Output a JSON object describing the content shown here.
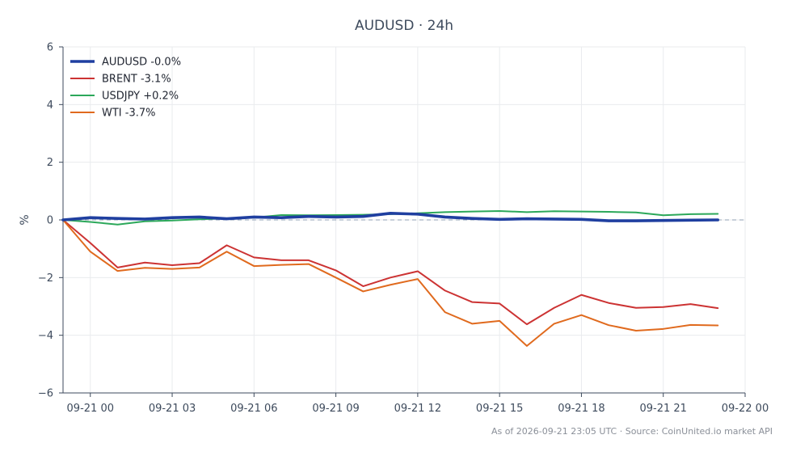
{
  "chart_data": {
    "type": "line",
    "title": "AUDUSD · 24h",
    "ylabel": "%",
    "xlabel": "",
    "ylim": [
      -6,
      6
    ],
    "yticks": [
      -6,
      -4,
      -2,
      0,
      2,
      4,
      6
    ],
    "ytick_labels": [
      "−6",
      "−4",
      "−2",
      "0",
      "2",
      "4",
      "6"
    ],
    "xlim": [
      "2026-09-20 23:00",
      "2026-09-22 00:00"
    ],
    "xticks": [
      "2026-09-21 00:00",
      "2026-09-21 03:00",
      "2026-09-21 06:00",
      "2026-09-21 09:00",
      "2026-09-21 12:00",
      "2026-09-21 15:00",
      "2026-09-21 18:00",
      "2026-09-21 21:00",
      "2026-09-22 00:00"
    ],
    "xtick_labels": [
      "09-21 00",
      "09-21 03",
      "09-21 06",
      "09-21 09",
      "09-21 12",
      "09-21 15",
      "09-21 18",
      "09-21 21",
      "09-22 00"
    ],
    "x": [
      "2026-09-20 23:00",
      "2026-09-21 00:00",
      "2026-09-21 01:00",
      "2026-09-21 02:00",
      "2026-09-21 03:00",
      "2026-09-21 04:00",
      "2026-09-21 05:00",
      "2026-09-21 06:00",
      "2026-09-21 07:00",
      "2026-09-21 08:00",
      "2026-09-21 09:00",
      "2026-09-21 10:00",
      "2026-09-21 11:00",
      "2026-09-21 12:00",
      "2026-09-21 13:00",
      "2026-09-21 14:00",
      "2026-09-21 15:00",
      "2026-09-21 16:00",
      "2026-09-21 17:00",
      "2026-09-21 18:00",
      "2026-09-21 19:00",
      "2026-09-21 20:00",
      "2026-09-21 21:00",
      "2026-09-21 22:00",
      "2026-09-21 23:00"
    ],
    "zero_line": true,
    "grid": true,
    "legend_position": "top-left",
    "series": [
      {
        "name": "AUDUSD",
        "legend": "AUDUSD -0.0%",
        "color": "#1f3fa0",
        "emphasis": true,
        "values": [
          0,
          0.08,
          0.05,
          0.03,
          0.08,
          0.1,
          0.04,
          0.1,
          0.08,
          0.12,
          0.1,
          0.12,
          0.23,
          0.2,
          0.1,
          0.05,
          0.02,
          0.04,
          0.03,
          0.02,
          -0.03,
          -0.03,
          -0.02,
          -0.01,
          0
        ]
      },
      {
        "name": "BRENT",
        "legend": "BRENT -3.1%",
        "color": "#cc3333",
        "values": [
          0,
          -0.8,
          -1.65,
          -1.48,
          -1.57,
          -1.5,
          -0.88,
          -1.3,
          -1.4,
          -1.4,
          -1.75,
          -2.3,
          -2.0,
          -1.78,
          -2.45,
          -2.85,
          -2.9,
          -3.62,
          -3.05,
          -2.6,
          -2.88,
          -3.05,
          -3.02,
          -2.92,
          -3.06
        ]
      },
      {
        "name": "USDJPY",
        "legend": "USDJPY +0.2%",
        "color": "#2ca85a",
        "values": [
          0,
          -0.07,
          -0.16,
          -0.05,
          -0.02,
          0.02,
          0.05,
          0.08,
          0.17,
          0.16,
          0.17,
          0.18,
          0.2,
          0.23,
          0.27,
          0.29,
          0.31,
          0.27,
          0.3,
          0.29,
          0.28,
          0.26,
          0.16,
          0.2,
          0.21
        ]
      },
      {
        "name": "WTI",
        "legend": "WTI -3.7%",
        "color": "#e06a1e",
        "values": [
          0,
          -1.1,
          -1.77,
          -1.66,
          -1.7,
          -1.65,
          -1.1,
          -1.6,
          -1.56,
          -1.53,
          -2.0,
          -2.48,
          -2.25,
          -2.05,
          -3.2,
          -3.6,
          -3.5,
          -4.37,
          -3.6,
          -3.3,
          -3.65,
          -3.84,
          -3.78,
          -3.64,
          -3.66
        ]
      }
    ]
  },
  "footer": "As of 2026-09-21 23:05 UTC · Source: CoinUnited.io market API"
}
